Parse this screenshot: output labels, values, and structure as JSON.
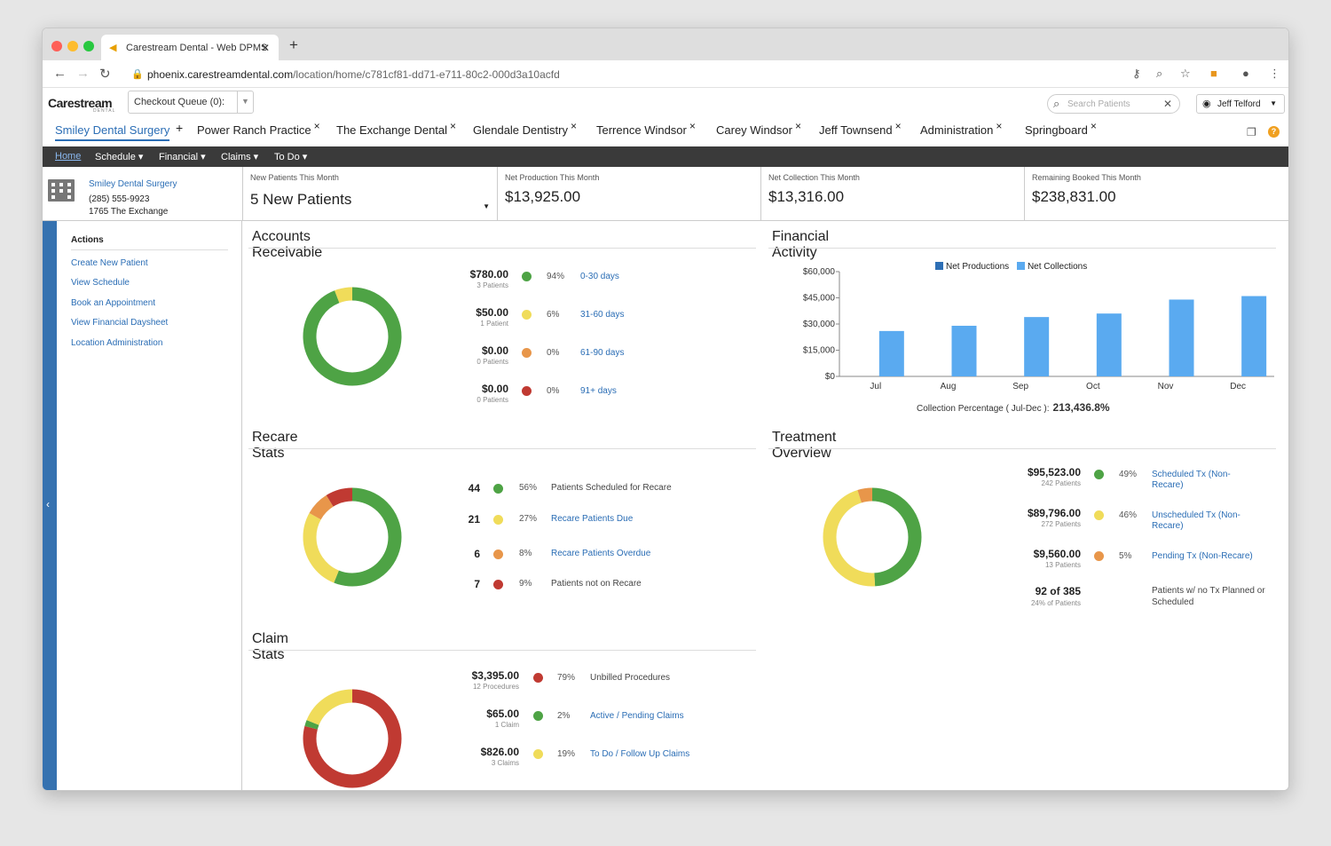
{
  "browser": {
    "tab_title": "Carestream Dental - Web DPMS",
    "url_host": "phoenix.carestreamdental.com",
    "url_path": "/location/home/c781cf81-dd71-e711-80c2-000d3a10acfd"
  },
  "header": {
    "logo": "Carestream",
    "logo_sub": "DENTAL",
    "queue_label": "Checkout Queue (0):",
    "search_placeholder": "Search Patients",
    "user_name": "Jeff Telford"
  },
  "location_tabs": [
    {
      "label": "Smiley Dental Surgery",
      "mark": "+"
    },
    {
      "label": "Power Ranch Practice",
      "mark": "×"
    },
    {
      "label": "The Exchange Dental",
      "mark": "×"
    },
    {
      "label": "Glendale Dentistry",
      "mark": "×"
    },
    {
      "label": "Terrence Windsor",
      "mark": "×"
    },
    {
      "label": "Carey Windsor",
      "mark": "×"
    },
    {
      "label": "Jeff Townsend",
      "mark": "×"
    },
    {
      "label": "Administration",
      "mark": "×"
    },
    {
      "label": "Springboard",
      "mark": "×"
    }
  ],
  "nav": [
    "Home",
    "Schedule ▾",
    "Financial ▾",
    "Claims ▾",
    "To Do ▾"
  ],
  "location": {
    "name": "Smiley Dental Surgery",
    "phone": "(285) 555-9923",
    "address": "1765 The Exchange"
  },
  "stats": [
    {
      "label": "New Patients This Month",
      "value": "5 New Patients"
    },
    {
      "label": "Net Production This Month",
      "value": "$13,925.00"
    },
    {
      "label": "Net Collection This Month",
      "value": "$13,316.00"
    },
    {
      "label": "Remaining Booked This Month",
      "value": "$238,831.00"
    }
  ],
  "actions": {
    "title": "Actions",
    "items": [
      "Create New Patient",
      "View Schedule",
      "Book an Appointment",
      "View Financial Daysheet",
      "Location Administration"
    ]
  },
  "colors": {
    "green": "#4ea345",
    "yellow": "#f0dc5a",
    "orange": "#e8964a",
    "red": "#c03a32",
    "bar": "#5aaaf0",
    "legend_prod": "#2e6fb5"
  },
  "ar": {
    "title": "Accounts Receivable",
    "rows": [
      {
        "amount": "$780.00",
        "sub": "3 Patients",
        "pct": "94%",
        "label": "0-30 days",
        "color": "green",
        "share": 94
      },
      {
        "amount": "$50.00",
        "sub": "1 Patient",
        "pct": "6%",
        "label": "31-60 days",
        "color": "yellow",
        "share": 6
      },
      {
        "amount": "$0.00",
        "sub": "0 Patients",
        "pct": "0%",
        "label": "61-90 days",
        "color": "orange",
        "share": 0
      },
      {
        "amount": "$0.00",
        "sub": "0 Patients",
        "pct": "0%",
        "label": "91+ days",
        "color": "red",
        "share": 0
      }
    ]
  },
  "recare": {
    "title": "Recare Stats",
    "rows": [
      {
        "count": "44",
        "pct": "56%",
        "label": "Patients Scheduled for Recare",
        "color": "green",
        "share": 56,
        "link": false
      },
      {
        "count": "21",
        "pct": "27%",
        "label": "Recare Patients Due",
        "color": "yellow",
        "share": 27,
        "link": true
      },
      {
        "count": "6",
        "pct": "8%",
        "label": "Recare Patients Overdue",
        "color": "orange",
        "share": 8,
        "link": true
      },
      {
        "count": "7",
        "pct": "9%",
        "label": "Patients not on Recare",
        "color": "red",
        "share": 9,
        "link": false
      }
    ]
  },
  "claims": {
    "title": "Claim Stats",
    "rows": [
      {
        "amount": "$3,395.00",
        "sub": "12 Procedures",
        "pct": "79%",
        "label": "Unbilled Procedures",
        "color": "red",
        "share": 79,
        "link": false
      },
      {
        "amount": "$65.00",
        "sub": "1 Claim",
        "pct": "2%",
        "label": "Active / Pending Claims",
        "color": "green",
        "share": 2,
        "link": true
      },
      {
        "amount": "$826.00",
        "sub": "3 Claims",
        "pct": "19%",
        "label": "To Do / Follow Up Claims",
        "color": "yellow",
        "share": 19,
        "link": true
      }
    ]
  },
  "treatment": {
    "title": "Treatment Overview",
    "rows": [
      {
        "amount": "$95,523.00",
        "sub": "242 Patients",
        "pct": "49%",
        "label": "Scheduled Tx (Non-Recare)",
        "color": "green",
        "share": 49,
        "link": true
      },
      {
        "amount": "$89,796.00",
        "sub": "272 Patients",
        "pct": "46%",
        "label": "Unscheduled Tx (Non-Recare)",
        "color": "yellow",
        "share": 46,
        "link": true
      },
      {
        "amount": "$9,560.00",
        "sub": "13 Patients",
        "pct": "5%",
        "label": "Pending Tx (Non-Recare)",
        "color": "orange",
        "share": 5,
        "link": true
      }
    ],
    "summary": {
      "amount": "92 of 385",
      "sub": "24% of Patients",
      "label": "Patients w/ no Tx Planned or Scheduled"
    }
  },
  "chart_data": {
    "type": "bar",
    "title": "Financial Activity",
    "categories": [
      "Jul",
      "Aug",
      "Sep",
      "Oct",
      "Nov",
      "Dec"
    ],
    "series": [
      {
        "name": "Net Productions",
        "values": [
          0,
          0,
          0,
          0,
          0,
          0
        ]
      },
      {
        "name": "Net Collections",
        "values": [
          26000,
          29000,
          34000,
          36000,
          44000,
          46000
        ]
      }
    ],
    "yticks": [
      "$60,000",
      "$45,000",
      "$30,000",
      "$15,000",
      "$0"
    ],
    "ylim": [
      0,
      60000
    ],
    "legend": "top",
    "collection_label": "Collection Percentage ( Jul-Dec ):",
    "collection_value": "213,436.8%"
  }
}
